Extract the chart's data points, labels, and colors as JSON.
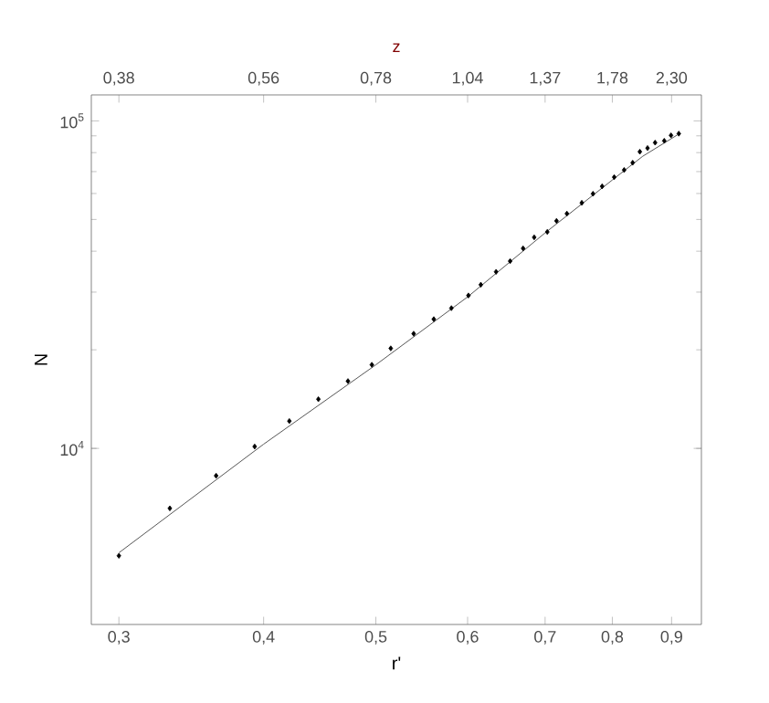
{
  "chart_data": {
    "type": "scatter",
    "xlabel": "r'",
    "ylabel": "N",
    "x2label": "z",
    "log": "xy",
    "xlim": [
      0.284,
      0.955
    ],
    "ylim": [
      2900,
      120000
    ],
    "xticks": [
      {
        "value": 0.3,
        "label": "0,3"
      },
      {
        "value": 0.4,
        "label": "0,4"
      },
      {
        "value": 0.5,
        "label": "0,5"
      },
      {
        "value": 0.6,
        "label": "0,6"
      },
      {
        "value": 0.7,
        "label": "0,7"
      },
      {
        "value": 0.8,
        "label": "0,8"
      },
      {
        "value": 0.9,
        "label": "0,9"
      }
    ],
    "yticks": [
      {
        "value": 10000,
        "label": "10$^{4}$"
      },
      {
        "value": 100000,
        "label": "10$^{5}$"
      }
    ],
    "annotations": [
      "0,38",
      "0,56",
      "0,78",
      "1,04",
      "1,37",
      "1,78",
      "2,30"
    ],
    "series": [
      {
        "color": "#000000",
        "marker": "diamond",
        "x": [
          0.3,
          0.332,
          0.364,
          0.393,
          0.421,
          0.446,
          0.473,
          0.496,
          0.515,
          0.539,
          0.561,
          0.581,
          0.601,
          0.616,
          0.635,
          0.653,
          0.67,
          0.685,
          0.703,
          0.716,
          0.731,
          0.753,
          0.77,
          0.784,
          0.803,
          0.819,
          0.833,
          0.845,
          0.858,
          0.871,
          0.887,
          0.899,
          0.913
        ],
        "values": [
          4700,
          6560,
          8250,
          10130,
          12120,
          14130,
          16050,
          18000,
          20200,
          22400,
          24800,
          26800,
          29300,
          31600,
          34600,
          37300,
          40800,
          44100,
          45800,
          49500,
          52100,
          56200,
          59900,
          63100,
          67300,
          70800,
          74500,
          80500,
          82600,
          85800,
          86900,
          90300,
          91400
        ]
      },
      {
        "type": "line",
        "color": "#555555",
        "marker": "none",
        "line_style": "solid",
        "x": [
          0.3,
          0.4,
          0.5,
          0.6,
          0.7,
          0.8,
          0.85,
          0.91
        ],
        "values": [
          4800,
          10300,
          18000,
          29000,
          45500,
          66000,
          78000,
          90500
        ]
      }
    ]
  }
}
